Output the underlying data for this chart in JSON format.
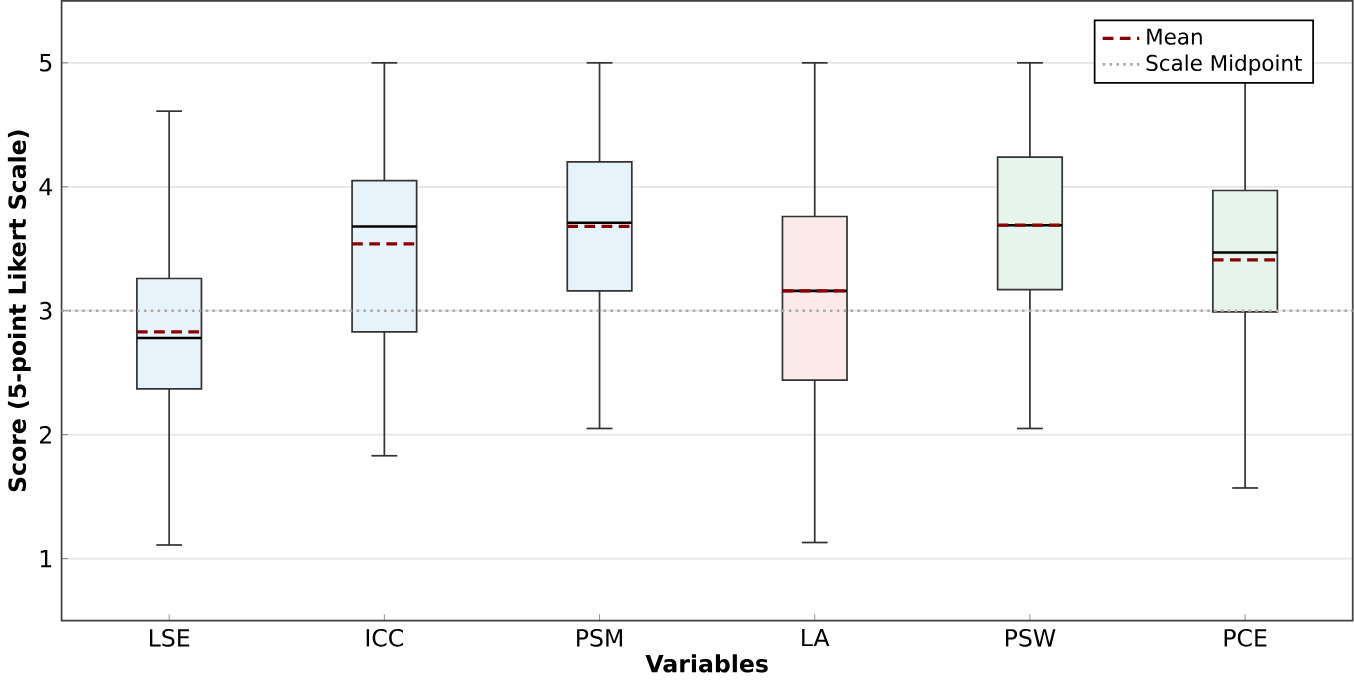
{
  "chart_data": {
    "type": "box",
    "xlabel": "Variables",
    "ylabel": "Score (5-point Likert Scale)",
    "categories": [
      "LSE",
      "ICC",
      "PSM",
      "LA",
      "PSW",
      "PCE"
    ],
    "colors": [
      "#e7f3fb",
      "#e7f3fb",
      "#e7f3fb",
      "#fceae8",
      "#e5f5ec",
      "#e5f5ec"
    ],
    "boxes": [
      {
        "low": 1.11,
        "q1": 2.37,
        "median": 2.78,
        "q3": 3.26,
        "high": 4.61,
        "mean": 2.83
      },
      {
        "low": 1.83,
        "q1": 2.83,
        "median": 3.68,
        "q3": 4.05,
        "high": 5,
        "mean": 3.54
      },
      {
        "low": 2.05,
        "q1": 3.16,
        "median": 3.71,
        "q3": 4.2,
        "high": 5,
        "mean": 3.68
      },
      {
        "low": 1.13,
        "q1": 2.44,
        "median": 3.16,
        "q3": 3.76,
        "high": 5,
        "mean": 3.16
      },
      {
        "low": 2.05,
        "q1": 3.17,
        "median": 3.69,
        "q3": 4.24,
        "high": 5,
        "mean": 3.69
      },
      {
        "low": 1.57,
        "q1": 2.99,
        "median": 3.47,
        "q3": 3.97,
        "high": 5,
        "mean": 3.41
      }
    ],
    "annotations": [
      "Mean"
    ],
    "ref_lines": [
      {
        "axis": "y",
        "value": 3,
        "label": "Scale Midpoint",
        "color": "#aaaaaa",
        "line_style": "dotted"
      }
    ],
    "ylim": [
      0.5,
      5.5
    ],
    "yticks": [
      1,
      2,
      3,
      4,
      5
    ],
    "grid": "y",
    "legend": "top right"
  }
}
